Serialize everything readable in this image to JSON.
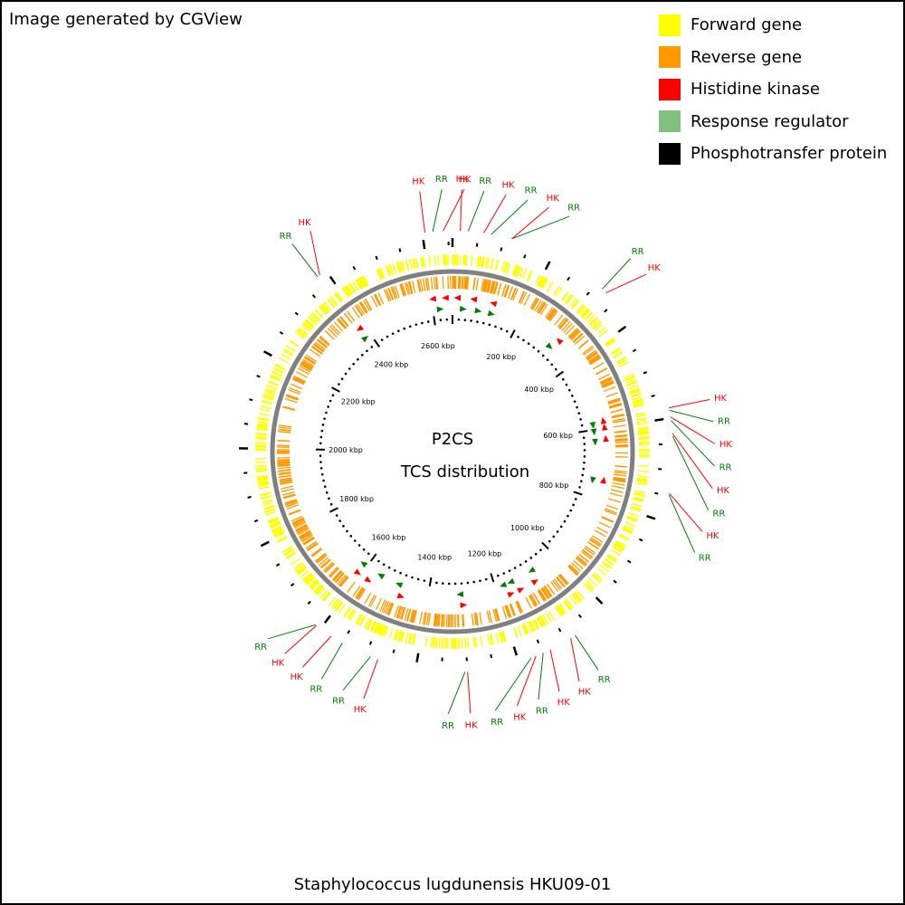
{
  "credit": "Image generated by CGView",
  "footer": "Staphylococcus lugdunensis HKU09-01",
  "center": {
    "line1": "P2CS",
    "line2": "TCS distribution"
  },
  "legend": [
    {
      "label": "Forward gene",
      "color": "#ffff00"
    },
    {
      "label": "Reverse gene",
      "color": "#ff9900"
    },
    {
      "label": "Histidine kinase",
      "color": "#ff0000"
    },
    {
      "label": "Response regulator",
      "color": "#80c080"
    },
    {
      "label": "Phosphotransfer protein",
      "color": "#000000"
    }
  ],
  "genome": {
    "length_kbp": 2658,
    "tick_label_kbp": [
      200,
      400,
      600,
      800,
      1000,
      1200,
      1400,
      1600,
      1800,
      2000,
      2200,
      2400,
      2600
    ],
    "tick_label_suffix": "kbp"
  },
  "tcs_features": [
    {
      "kind": "HK",
      "kbp": 2605
    },
    {
      "kind": "RR",
      "kbp": 2620
    },
    {
      "kind": "HK",
      "kbp": 2640
    },
    {
      "kind": "HK",
      "kbp": 15
    },
    {
      "kind": "RR",
      "kbp": 30
    },
    {
      "kind": "HK",
      "kbp": 60
    },
    {
      "kind": "RR",
      "kbp": 75
    },
    {
      "kind": "HK",
      "kbp": 115
    },
    {
      "kind": "RR",
      "kbp": 115
    },
    {
      "kind": "RR",
      "kbp": 315
    },
    {
      "kind": "HK",
      "kbp": 325
    },
    {
      "kind": "HK",
      "kbp": 580
    },
    {
      "kind": "RR",
      "kbp": 585
    },
    {
      "kind": "HK",
      "kbp": 598
    },
    {
      "kind": "RR",
      "kbp": 605
    },
    {
      "kind": "HK",
      "kbp": 630
    },
    {
      "kind": "RR",
      "kbp": 635
    },
    {
      "kind": "HK",
      "kbp": 745
    },
    {
      "kind": "RR",
      "kbp": 748
    },
    {
      "kind": "RR",
      "kbp": 1080
    },
    {
      "kind": "HK",
      "kbp": 1090
    },
    {
      "kind": "HK",
      "kbp": 1135
    },
    {
      "kind": "RR",
      "kbp": 1150
    },
    {
      "kind": "HK",
      "kbp": 1165
    },
    {
      "kind": "RR",
      "kbp": 1175
    },
    {
      "kind": "HK",
      "kbp": 1300
    },
    {
      "kind": "RR",
      "kbp": 1305
    },
    {
      "kind": "HK",
      "kbp": 1475
    },
    {
      "kind": "RR",
      "kbp": 1490
    },
    {
      "kind": "RR",
      "kbp": 1550
    },
    {
      "kind": "HK",
      "kbp": 1575
    },
    {
      "kind": "HK",
      "kbp": 1610
    },
    {
      "kind": "RR",
      "kbp": 1612
    },
    {
      "kind": "RR",
      "kbp": 2380
    },
    {
      "kind": "HK",
      "kbp": 2385
    }
  ]
}
